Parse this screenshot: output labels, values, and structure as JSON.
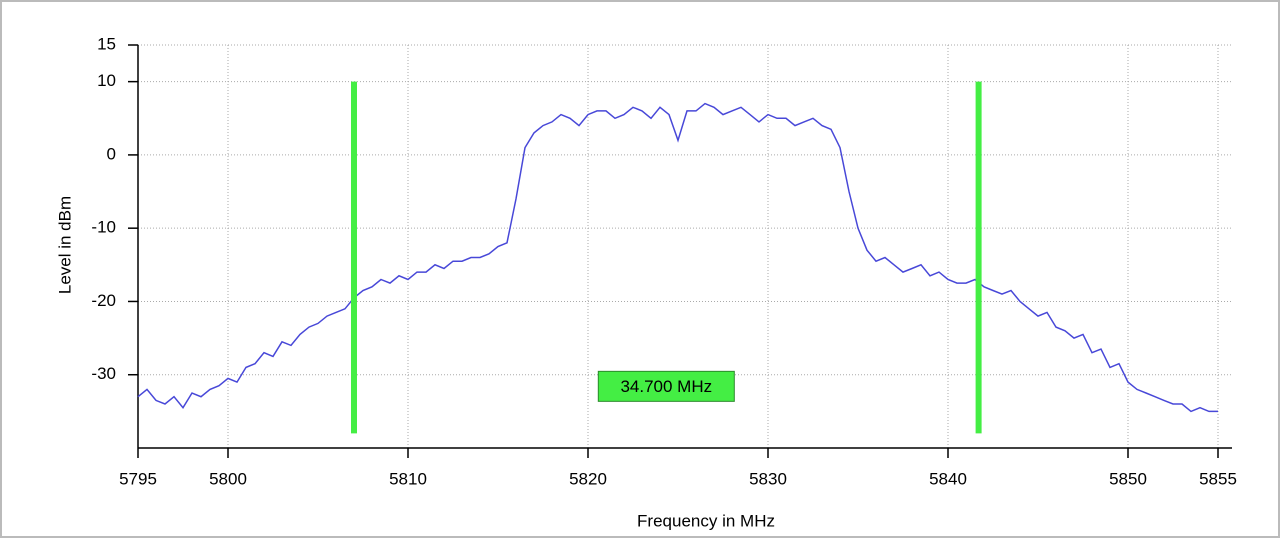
{
  "chart_data": {
    "type": "line",
    "xlabel": "Frequency in MHz",
    "ylabel": "Level in dBm",
    "x": [
      5795,
      5795.5,
      5796,
      5796.5,
      5797,
      5797.5,
      5798,
      5798.5,
      5799,
      5799.5,
      5800,
      5800.5,
      5801,
      5801.5,
      5802,
      5802.5,
      5803,
      5803.5,
      5804,
      5804.5,
      5805,
      5805.5,
      5806,
      5806.5,
      5807,
      5807.5,
      5808,
      5808.5,
      5809,
      5809.5,
      5810,
      5810.5,
      5811,
      5811.5,
      5812,
      5812.5,
      5813,
      5813.5,
      5814,
      5814.5,
      5815,
      5815.5,
      5816,
      5816.5,
      5817,
      5817.5,
      5818,
      5818.5,
      5819,
      5819.5,
      5820,
      5820.5,
      5821,
      5821.5,
      5822,
      5822.5,
      5823,
      5823.5,
      5824,
      5824.5,
      5825,
      5825.5,
      5826,
      5826.5,
      5827,
      5827.5,
      5828,
      5828.5,
      5829,
      5829.5,
      5830,
      5830.5,
      5831,
      5831.5,
      5832,
      5832.5,
      5833,
      5833.5,
      5834,
      5834.5,
      5835,
      5835.5,
      5836,
      5836.5,
      5837,
      5837.5,
      5838,
      5838.5,
      5839,
      5839.5,
      5840,
      5840.5,
      5841,
      5841.5,
      5842,
      5842.5,
      5843,
      5843.5,
      5844,
      5844.5,
      5845,
      5845.5,
      5846,
      5846.5,
      5847,
      5847.5,
      5848,
      5848.5,
      5849,
      5849.5,
      5850,
      5850.5,
      5851,
      5851.5,
      5852,
      5852.5,
      5853,
      5853.5,
      5854,
      5854.5,
      5855
    ],
    "series": [
      {
        "name": "Level",
        "color": "#4848d8",
        "values": [
          -33,
          -32,
          -33.5,
          -34,
          -33,
          -34.5,
          -32.5,
          -33,
          -32,
          -31.5,
          -30.5,
          -31,
          -29,
          -28.5,
          -27,
          -27.5,
          -25.5,
          -26,
          -24.5,
          -23.5,
          -23,
          -22,
          -21.5,
          -21,
          -19.5,
          -18.5,
          -18,
          -17,
          -17.5,
          -16.5,
          -17,
          -16,
          -16,
          -15,
          -15.5,
          -14.5,
          -14.5,
          -14,
          -14,
          -13.5,
          -12.5,
          -12,
          -6,
          1,
          3,
          4,
          4.5,
          5.5,
          5,
          4,
          5.5,
          6,
          6,
          5,
          5.5,
          6.5,
          6,
          5,
          6.5,
          5.5,
          2,
          6,
          6,
          7,
          6.5,
          5.5,
          6,
          6.5,
          5.5,
          4.5,
          5.5,
          5,
          5,
          4,
          4.5,
          5,
          4,
          3.5,
          1,
          -5,
          -10,
          -13,
          -14.5,
          -14,
          -15,
          -16,
          -15.5,
          -15,
          -16.5,
          -16,
          -17,
          -17.5,
          -17.5,
          -17,
          -18,
          -18.5,
          -19,
          -18.5,
          -20,
          -21,
          -22,
          -21.5,
          -23.5,
          -24,
          -25,
          -24.5,
          -27,
          -26.5,
          -29,
          -28.5,
          -31,
          -32,
          -32.5,
          -33,
          -33.5,
          -34,
          -34,
          -35,
          -34.5,
          -35,
          -35
        ]
      }
    ],
    "xlim": [
      5795,
      5855
    ],
    "xticks": [
      5795,
      5800,
      5810,
      5820,
      5830,
      5840,
      5850,
      5855
    ],
    "ylim": [
      -40,
      15
    ],
    "yticks": [
      -30,
      -20,
      -10,
      0,
      10,
      15
    ],
    "grid": true,
    "markers": {
      "x": [
        5807.0,
        5841.7
      ],
      "top": 10,
      "bottom": -38,
      "color": "#44ee44",
      "label": "34.700 MHz"
    }
  }
}
